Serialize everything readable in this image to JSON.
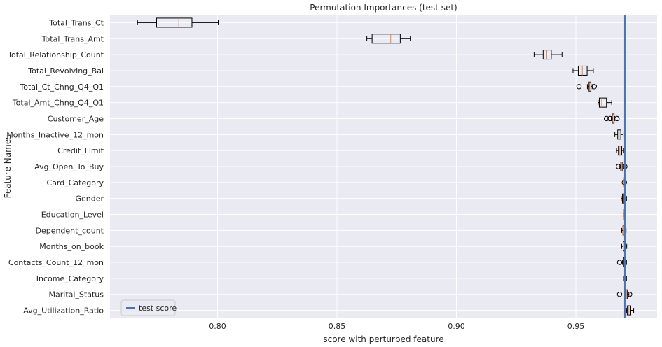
{
  "chart_data": {
    "type": "boxplot",
    "orientation": "horizontal",
    "title": "Permutation Importances (test set)",
    "xlabel": "score with perturbed feature",
    "ylabel": "Feature Names",
    "xlim": [
      0.755,
      0.984
    ],
    "xticks": [
      0.8,
      0.85,
      0.9,
      0.95
    ],
    "xtick_labels": [
      "0.80",
      "0.85",
      "0.90",
      "0.95"
    ],
    "grid": true,
    "background": "#EAEAF2",
    "colors": {
      "box": "#000000",
      "median": "#DD8452",
      "reference_line": "#4C72B0"
    },
    "reference_line": {
      "name": "test score",
      "value": 0.9705
    },
    "legend": {
      "position": "lower-left",
      "entries": [
        "test score"
      ]
    },
    "features": [
      {
        "name": "Total_Trans_Ct",
        "whislo": 0.7665,
        "q1": 0.7745,
        "med": 0.7838,
        "q3": 0.7893,
        "whishi": 0.8003,
        "fliers": []
      },
      {
        "name": "Total_Trans_Amt",
        "whislo": 0.8625,
        "q1": 0.8647,
        "med": 0.8725,
        "q3": 0.8765,
        "whishi": 0.8807,
        "fliers": []
      },
      {
        "name": "Total_Relationship_Count",
        "whislo": 0.9325,
        "q1": 0.9363,
        "med": 0.9378,
        "q3": 0.9397,
        "whishi": 0.9442,
        "fliers": []
      },
      {
        "name": "Total_Revolving_Bal",
        "whislo": 0.9488,
        "q1": 0.951,
        "med": 0.9527,
        "q3": 0.9547,
        "whishi": 0.9573,
        "fliers": []
      },
      {
        "name": "Total_Ct_Chng_Q4_Q1",
        "whislo": 0.9548,
        "q1": 0.9555,
        "med": 0.9558,
        "q3": 0.9563,
        "whishi": 0.9568,
        "fliers": [
          0.9513,
          0.9577
        ]
      },
      {
        "name": "Total_Amt_Chng_Q4_Q1",
        "whislo": 0.9593,
        "q1": 0.9598,
        "med": 0.9608,
        "q3": 0.9628,
        "whishi": 0.965,
        "fliers": []
      },
      {
        "name": "Customer_Age",
        "whislo": 0.9648,
        "q1": 0.9652,
        "med": 0.9655,
        "q3": 0.966,
        "whishi": 0.9663,
        "fliers": [
          0.9628,
          0.9643,
          0.9672
        ]
      },
      {
        "name": "Months_Inactive_12_mon",
        "whislo": 0.9663,
        "q1": 0.9675,
        "med": 0.9681,
        "q3": 0.9688,
        "whishi": 0.9698,
        "fliers": []
      },
      {
        "name": "Credit_Limit",
        "whislo": 0.967,
        "q1": 0.9678,
        "med": 0.9684,
        "q3": 0.9692,
        "whishi": 0.97,
        "fliers": []
      },
      {
        "name": "Avg_Open_To_Buy",
        "whislo": 0.9682,
        "q1": 0.9688,
        "med": 0.9692,
        "q3": 0.9696,
        "whishi": 0.97,
        "fliers": [
          0.9678,
          0.9705
        ]
      },
      {
        "name": "Card_Category",
        "whislo": 0.9702,
        "q1": 0.9702,
        "med": 0.9702,
        "q3": 0.9703,
        "whishi": 0.9703,
        "fliers": [
          0.9703
        ]
      },
      {
        "name": "Gender",
        "whislo": 0.969,
        "q1": 0.9695,
        "med": 0.9699,
        "q3": 0.9702,
        "whishi": 0.9712,
        "fliers": []
      },
      {
        "name": "Education_Level",
        "whislo": 0.9702,
        "q1": 0.9702,
        "med": 0.9702,
        "q3": 0.9702,
        "whishi": 0.9702,
        "fliers": []
      },
      {
        "name": "Dependent_count",
        "whislo": 0.9692,
        "q1": 0.9697,
        "med": 0.9701,
        "q3": 0.9704,
        "whishi": 0.971,
        "fliers": []
      },
      {
        "name": "Months_on_book",
        "whislo": 0.9692,
        "q1": 0.9698,
        "med": 0.9703,
        "q3": 0.9708,
        "whishi": 0.9713,
        "fliers": []
      },
      {
        "name": "Contacts_Count_12_mon",
        "whislo": 0.9695,
        "q1": 0.97,
        "med": 0.9704,
        "q3": 0.9707,
        "whishi": 0.9712,
        "fliers": [
          0.9683
        ]
      },
      {
        "name": "Income_Category",
        "whislo": 0.9702,
        "q1": 0.9704,
        "med": 0.9707,
        "q3": 0.9709,
        "whishi": 0.9712,
        "fliers": []
      },
      {
        "name": "Marital_Status",
        "whislo": 0.9705,
        "q1": 0.9708,
        "med": 0.9712,
        "q3": 0.9716,
        "whishi": 0.9722,
        "fliers": [
          0.9683,
          0.9725
        ]
      },
      {
        "name": "Avg_Utilization_Ratio",
        "whislo": 0.9712,
        "q1": 0.9715,
        "med": 0.9722,
        "q3": 0.973,
        "whishi": 0.9742,
        "fliers": []
      }
    ]
  }
}
